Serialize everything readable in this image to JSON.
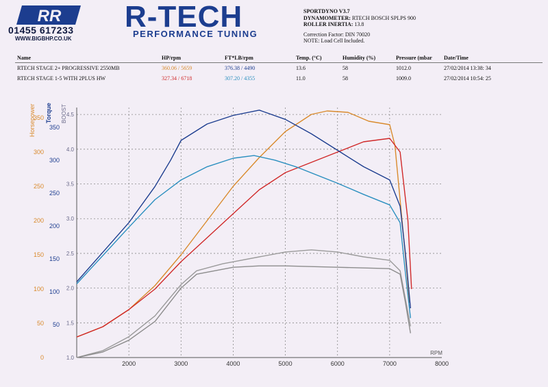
{
  "header": {
    "logo_text": "RR",
    "phone": "01455 617233",
    "website": "WWW.BIGBHP.CO.UK",
    "brand": "R-TECH",
    "tagline": "PERFORMANCE TUNING"
  },
  "dyno_info": {
    "software": "SPORTDYNO V3.7",
    "dynamometer_label": "DYNAMOMETER:",
    "dynamometer_value": "RTECH BOSCH SPLPS 900",
    "roller_inertia_label": "ROLLER INERTIA:",
    "roller_inertia_value": "13.8",
    "correction_factor": "Correction Factor: DIN 70020",
    "note": "NOTE: Load Cell Included."
  },
  "table": {
    "headers": [
      "Name",
      "HP/rpm",
      "FT*LB/rpm",
      "Temp. (°C)",
      "Humidity (%)",
      "Pressure (mbar",
      "Date/Time"
    ],
    "rows": [
      {
        "name": "RTECH STAGE 2+ PROGRESSIVE 2550MB",
        "hp": "360.06 / 5659",
        "torque": "376.38 / 4490",
        "temp": "13.6",
        "humidity": "58",
        "pressure": "1012.0",
        "datetime": "27/02/2014 13:38: 34"
      },
      {
        "name": "RTECH STAGE 1-5 WITH 2PLUS HW",
        "hp": "327.34 / 6718",
        "torque": "307.20 / 4355",
        "temp": "11.0",
        "humidity": "58",
        "pressure": "1009.0",
        "datetime": "27/02/2014 10:54: 25"
      }
    ]
  },
  "colors": {
    "hp_run1": "#d98a2c",
    "hp_run2": "#d02828",
    "torque_run1": "#1c3d8f",
    "torque_run2": "#2a8fbf",
    "boost_run1": "#9a9a9a",
    "boost_run2": "#8c8c8c",
    "axis_hp": "#d98a2c",
    "axis_torque": "#1c3d8f",
    "axis_boost": "#6a6a8a",
    "grid": "#888888"
  },
  "chart_data": {
    "type": "line",
    "xlabel": "RPM",
    "x_ticks": [
      2000,
      3000,
      4000,
      5000,
      6000,
      7000,
      8000
    ],
    "xlim": [
      1000,
      8000
    ],
    "axes": {
      "horsepower": {
        "label": "Horsepower",
        "ticks": [
          0,
          50,
          100,
          150,
          200,
          250,
          300,
          350
        ],
        "range": [
          0,
          365
        ]
      },
      "torque": {
        "label": "Torque",
        "ticks": [
          50,
          100,
          150,
          200,
          250,
          300,
          350
        ],
        "range": [
          0,
          380
        ]
      },
      "boost": {
        "label": "BOOST",
        "ticks": [
          1.0,
          1.5,
          2.0,
          2.5,
          3.0,
          3.5,
          4.0,
          4.5
        ],
        "range": [
          1.0,
          4.6
        ]
      }
    },
    "grid": true,
    "series": [
      {
        "key": "hp_run1",
        "axis": "horsepower",
        "points": [
          [
            1000,
            30
          ],
          [
            1500,
            45
          ],
          [
            2000,
            70
          ],
          [
            2500,
            105
          ],
          [
            3000,
            150
          ],
          [
            3500,
            200
          ],
          [
            4000,
            250
          ],
          [
            4500,
            292
          ],
          [
            5000,
            330
          ],
          [
            5500,
            355
          ],
          [
            5800,
            360
          ],
          [
            6200,
            358
          ],
          [
            6600,
            345
          ],
          [
            7000,
            340
          ],
          [
            7100,
            310
          ],
          [
            7200,
            230
          ],
          [
            7300,
            150
          ],
          [
            7380,
            80
          ]
        ]
      },
      {
        "key": "hp_run2",
        "axis": "horsepower",
        "points": [
          [
            1000,
            30
          ],
          [
            1500,
            45
          ],
          [
            2000,
            70
          ],
          [
            2500,
            100
          ],
          [
            3000,
            140
          ],
          [
            3500,
            175
          ],
          [
            4000,
            210
          ],
          [
            4500,
            245
          ],
          [
            5000,
            270
          ],
          [
            5500,
            285
          ],
          [
            6000,
            300
          ],
          [
            6500,
            315
          ],
          [
            7000,
            320
          ],
          [
            7200,
            300
          ],
          [
            7350,
            200
          ],
          [
            7420,
            100
          ]
        ]
      },
      {
        "key": "torque_run1",
        "axis": "torque",
        "points": [
          [
            1000,
            115
          ],
          [
            1500,
            160
          ],
          [
            2000,
            205
          ],
          [
            2500,
            260
          ],
          [
            2800,
            300
          ],
          [
            3000,
            330
          ],
          [
            3500,
            355
          ],
          [
            4000,
            368
          ],
          [
            4500,
            376
          ],
          [
            5000,
            362
          ],
          [
            5500,
            340
          ],
          [
            6000,
            315
          ],
          [
            6500,
            290
          ],
          [
            7000,
            270
          ],
          [
            7200,
            230
          ],
          [
            7300,
            160
          ],
          [
            7400,
            75
          ]
        ]
      },
      {
        "key": "torque_run2",
        "axis": "torque",
        "points": [
          [
            1000,
            112
          ],
          [
            1500,
            155
          ],
          [
            2000,
            198
          ],
          [
            2500,
            240
          ],
          [
            3000,
            270
          ],
          [
            3500,
            290
          ],
          [
            4000,
            303
          ],
          [
            4400,
            307
          ],
          [
            4800,
            300
          ],
          [
            5200,
            290
          ],
          [
            6000,
            265
          ],
          [
            6500,
            248
          ],
          [
            7000,
            232
          ],
          [
            7200,
            205
          ],
          [
            7300,
            130
          ],
          [
            7400,
            60
          ]
        ]
      },
      {
        "key": "boost_run1",
        "axis": "boost",
        "points": [
          [
            1000,
            1.0
          ],
          [
            1500,
            1.1
          ],
          [
            2000,
            1.3
          ],
          [
            2500,
            1.6
          ],
          [
            3000,
            2.05
          ],
          [
            3300,
            2.25
          ],
          [
            3800,
            2.35
          ],
          [
            4500,
            2.45
          ],
          [
            5000,
            2.52
          ],
          [
            5500,
            2.55
          ],
          [
            6000,
            2.52
          ],
          [
            6500,
            2.45
          ],
          [
            7000,
            2.4
          ],
          [
            7200,
            2.25
          ],
          [
            7300,
            1.85
          ],
          [
            7400,
            1.45
          ]
        ]
      },
      {
        "key": "boost_run2",
        "axis": "boost",
        "points": [
          [
            1000,
            1.0
          ],
          [
            1500,
            1.08
          ],
          [
            2000,
            1.25
          ],
          [
            2500,
            1.52
          ],
          [
            3000,
            2.0
          ],
          [
            3300,
            2.2
          ],
          [
            4000,
            2.3
          ],
          [
            4500,
            2.32
          ],
          [
            5000,
            2.32
          ],
          [
            6000,
            2.3
          ],
          [
            7000,
            2.28
          ],
          [
            7200,
            2.2
          ],
          [
            7300,
            1.8
          ],
          [
            7400,
            1.35
          ]
        ]
      }
    ]
  }
}
